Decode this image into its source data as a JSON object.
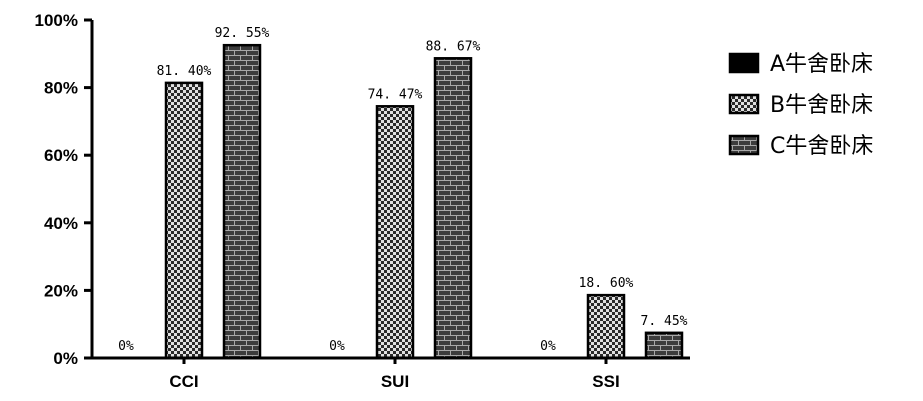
{
  "chart_data": {
    "type": "bar",
    "categories": [
      "CCI",
      "SUI",
      "SSI"
    ],
    "series": [
      {
        "name": "A牛舍卧床",
        "values": [
          0,
          0,
          0
        ],
        "labels": [
          "0%",
          "0%",
          "0%"
        ],
        "fill": "solid",
        "color": "#000000"
      },
      {
        "name": "B牛舍卧床",
        "values": [
          81.4,
          74.47,
          18.6
        ],
        "labels": [
          "81. 40%",
          "74. 47%",
          "18. 60%"
        ],
        "fill": "checker",
        "color": "#1a1a1a"
      },
      {
        "name": "C牛舍卧床",
        "values": [
          92.55,
          88.67,
          7.45
        ],
        "labels": [
          "92. 55%",
          "88. 67%",
          "7. 45%"
        ],
        "fill": "brick",
        "color": "#3a3a3a"
      }
    ],
    "yticks": [
      0,
      20,
      40,
      60,
      80,
      100
    ],
    "ytick_labels": [
      "0%",
      "20%",
      "40%",
      "60%",
      "80%",
      "100%"
    ],
    "ylim": [
      0,
      100
    ],
    "title": "",
    "xlabel": "",
    "ylabel": "",
    "grid": false,
    "legend_position": "right"
  }
}
